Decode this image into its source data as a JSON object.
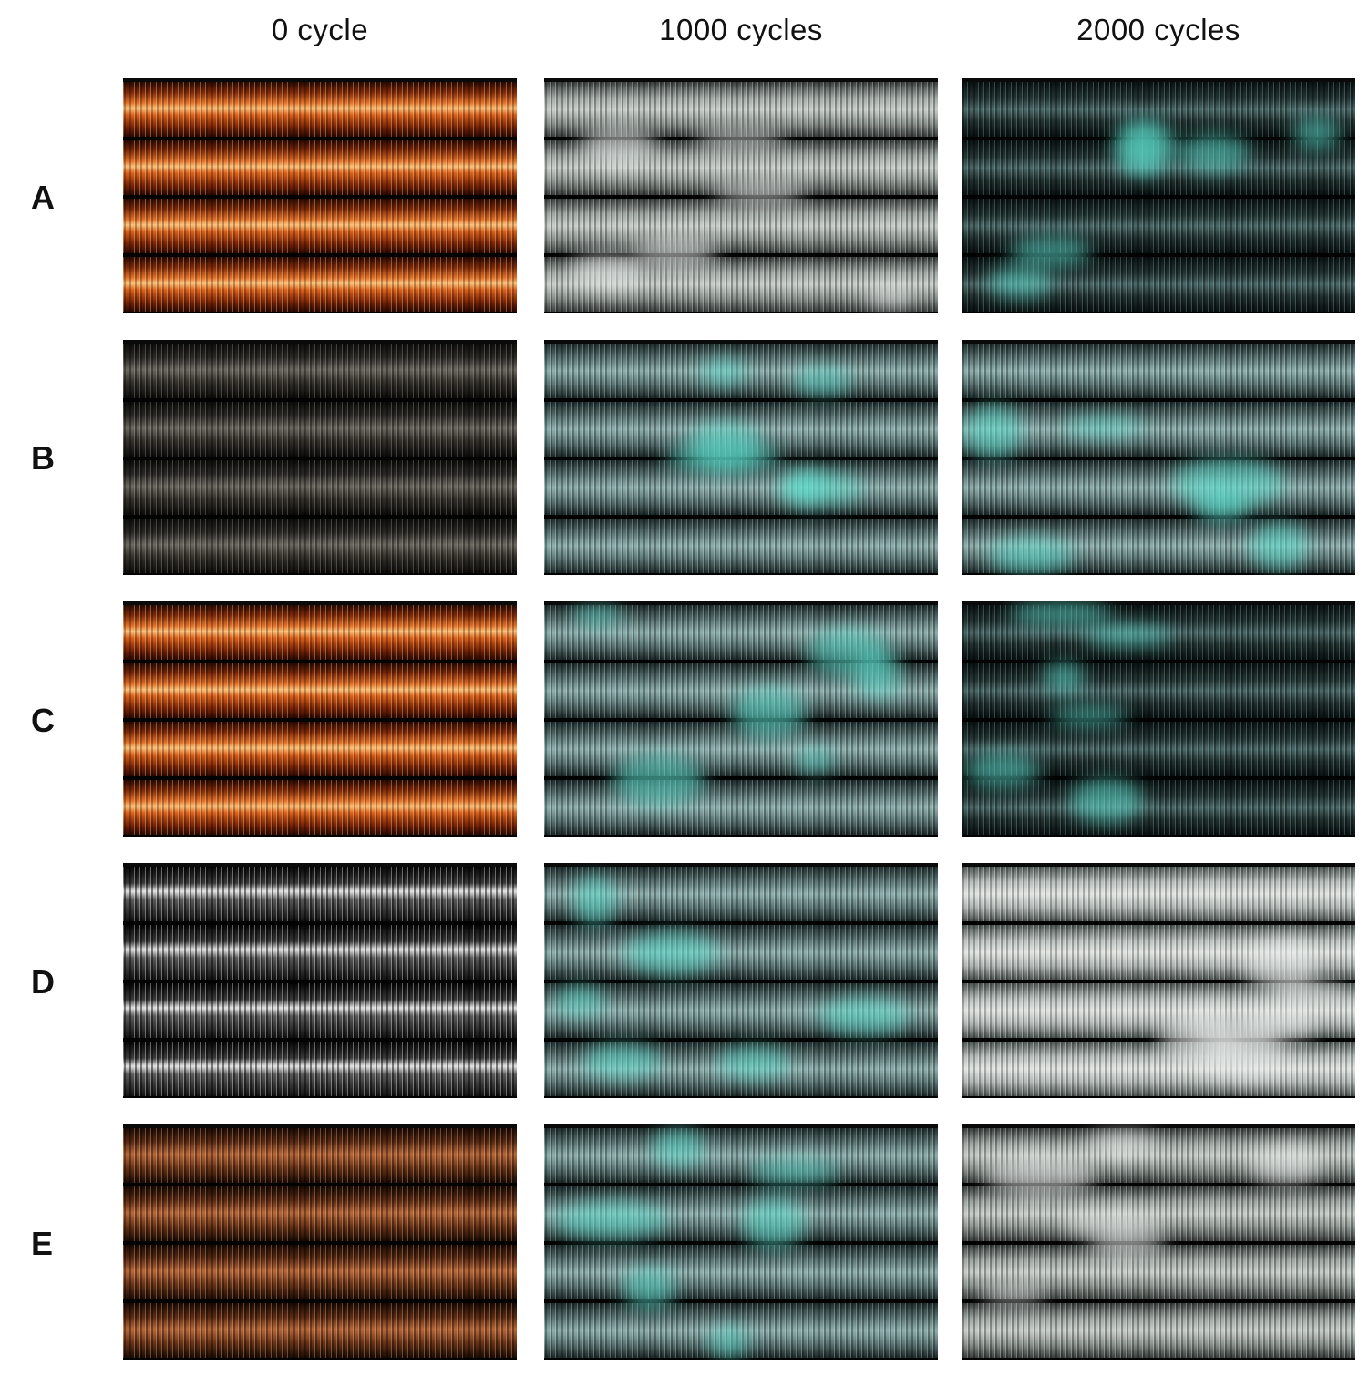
{
  "figure": {
    "columns": [
      "0 cycle",
      "1000 cycles",
      "2000 cycles"
    ],
    "rows": [
      "A",
      "B",
      "C",
      "D",
      "E"
    ]
  },
  "photos": {
    "palette": {
      "copper": "#d9601c",
      "dark": "#2a2824",
      "silver": "#b0b0b0",
      "gray": "#9fa7a3",
      "teal": "#8fb0ae",
      "darkteal": "#243434",
      "chalk": "#e2e6e3",
      "rust": "#b8683a",
      "corrosion_spot": "#5fe0d0"
    },
    "grid": [
      [
        "copper",
        "gray",
        "darkteal"
      ],
      [
        "dark",
        "teal",
        "teal"
      ],
      [
        "copper",
        "teal",
        "darkteal"
      ],
      [
        "silver",
        "teal",
        "chalk"
      ],
      [
        "rust",
        "teal",
        "gray"
      ]
    ]
  }
}
